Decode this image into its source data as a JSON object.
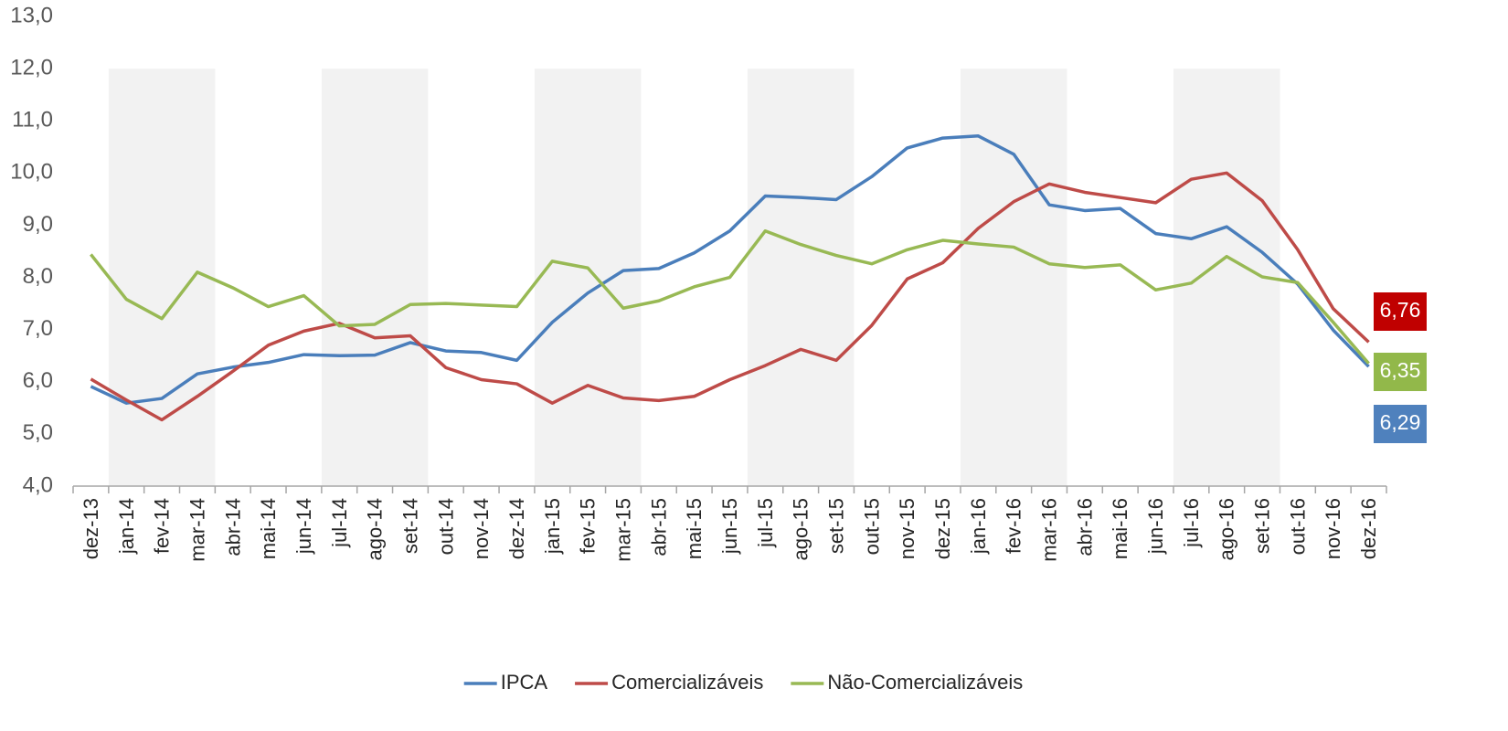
{
  "chart_data": {
    "type": "line",
    "categories": [
      "dez-13",
      "jan-14",
      "fev-14",
      "mar-14",
      "abr-14",
      "mai-14",
      "jun-14",
      "jul-14",
      "ago-14",
      "set-14",
      "out-14",
      "nov-14",
      "dez-14",
      "jan-15",
      "fev-15",
      "mar-15",
      "abr-15",
      "mai-15",
      "jun-15",
      "jul-15",
      "ago-15",
      "set-15",
      "out-15",
      "nov-15",
      "dez-15",
      "jan-16",
      "fev-16",
      "mar-16",
      "abr-16",
      "mai-16",
      "jun-16",
      "jul-16",
      "ago-16",
      "set-16",
      "out-16",
      "nov-16",
      "dez-16"
    ],
    "series": [
      {
        "name": "IPCA",
        "color": "#4a7ebb",
        "label_color": "#4f81bd",
        "values": [
          5.91,
          5.59,
          5.68,
          6.15,
          6.28,
          6.37,
          6.52,
          6.5,
          6.51,
          6.75,
          6.59,
          6.56,
          6.41,
          7.14,
          7.7,
          8.13,
          8.17,
          8.47,
          8.89,
          9.56,
          9.53,
          9.49,
          9.93,
          10.48,
          10.67,
          10.71,
          10.36,
          9.39,
          9.28,
          9.32,
          8.84,
          8.74,
          8.97,
          8.48,
          7.87,
          6.99,
          6.29
        ],
        "value_labels": [
          null,
          null,
          null,
          null,
          null,
          null,
          null,
          null,
          null,
          null,
          null,
          null,
          null,
          null,
          null,
          null,
          null,
          null,
          null,
          null,
          null,
          null,
          null,
          null,
          null,
          null,
          null,
          null,
          null,
          null,
          null,
          null,
          null,
          null,
          null,
          null,
          "6,29"
        ]
      },
      {
        "name": "Comercializáveis",
        "color": "#be4b48",
        "label_color": "#c00000",
        "values": [
          6.05,
          5.65,
          5.27,
          5.72,
          6.2,
          6.7,
          6.97,
          7.12,
          6.84,
          6.88,
          6.27,
          6.04,
          5.96,
          5.59,
          5.93,
          5.69,
          5.64,
          5.72,
          6.04,
          6.31,
          6.62,
          6.41,
          7.08,
          7.97,
          8.28,
          8.94,
          9.45,
          9.79,
          9.63,
          9.53,
          9.43,
          9.88,
          10.0,
          9.47,
          8.53,
          7.4,
          6.76
        ],
        "value_labels": [
          null,
          null,
          null,
          null,
          null,
          null,
          null,
          null,
          null,
          null,
          null,
          null,
          null,
          null,
          null,
          null,
          null,
          null,
          null,
          null,
          null,
          null,
          null,
          null,
          null,
          null,
          null,
          null,
          null,
          null,
          null,
          null,
          null,
          null,
          null,
          null,
          "6,76"
        ]
      },
      {
        "name": "Não-Comercializáveis",
        "color": "#98b954",
        "label_color": "#92b84a",
        "values": [
          8.44,
          7.58,
          7.21,
          8.1,
          7.8,
          7.44,
          7.65,
          7.07,
          7.1,
          7.48,
          7.5,
          7.47,
          7.44,
          8.31,
          8.18,
          7.41,
          7.55,
          7.82,
          8.0,
          8.89,
          8.63,
          8.42,
          8.26,
          8.53,
          8.71,
          8.64,
          8.58,
          8.26,
          8.19,
          8.24,
          7.76,
          7.89,
          8.4,
          8.01,
          7.9,
          7.14,
          6.35
        ],
        "value_labels": [
          null,
          null,
          null,
          null,
          null,
          null,
          null,
          null,
          null,
          null,
          null,
          null,
          null,
          null,
          null,
          null,
          null,
          null,
          null,
          null,
          null,
          null,
          null,
          null,
          null,
          null,
          null,
          null,
          null,
          null,
          null,
          null,
          null,
          null,
          null,
          null,
          "6,35"
        ]
      }
    ],
    "ylim": [
      4,
      13
    ],
    "yticks": [
      {
        "value": 4,
        "label": "4,0"
      },
      {
        "value": 5,
        "label": "5,0"
      },
      {
        "value": 6,
        "label": "6,0"
      },
      {
        "value": 7,
        "label": "7,0"
      },
      {
        "value": 8,
        "label": "8,0"
      },
      {
        "value": 9,
        "label": "9,0"
      },
      {
        "value": 10,
        "label": "10,0"
      },
      {
        "value": 11,
        "label": "11,0"
      },
      {
        "value": 12,
        "label": "12,0"
      },
      {
        "value": 13,
        "label": "13,0"
      }
    ],
    "grid": false,
    "legend": "bottom"
  }
}
